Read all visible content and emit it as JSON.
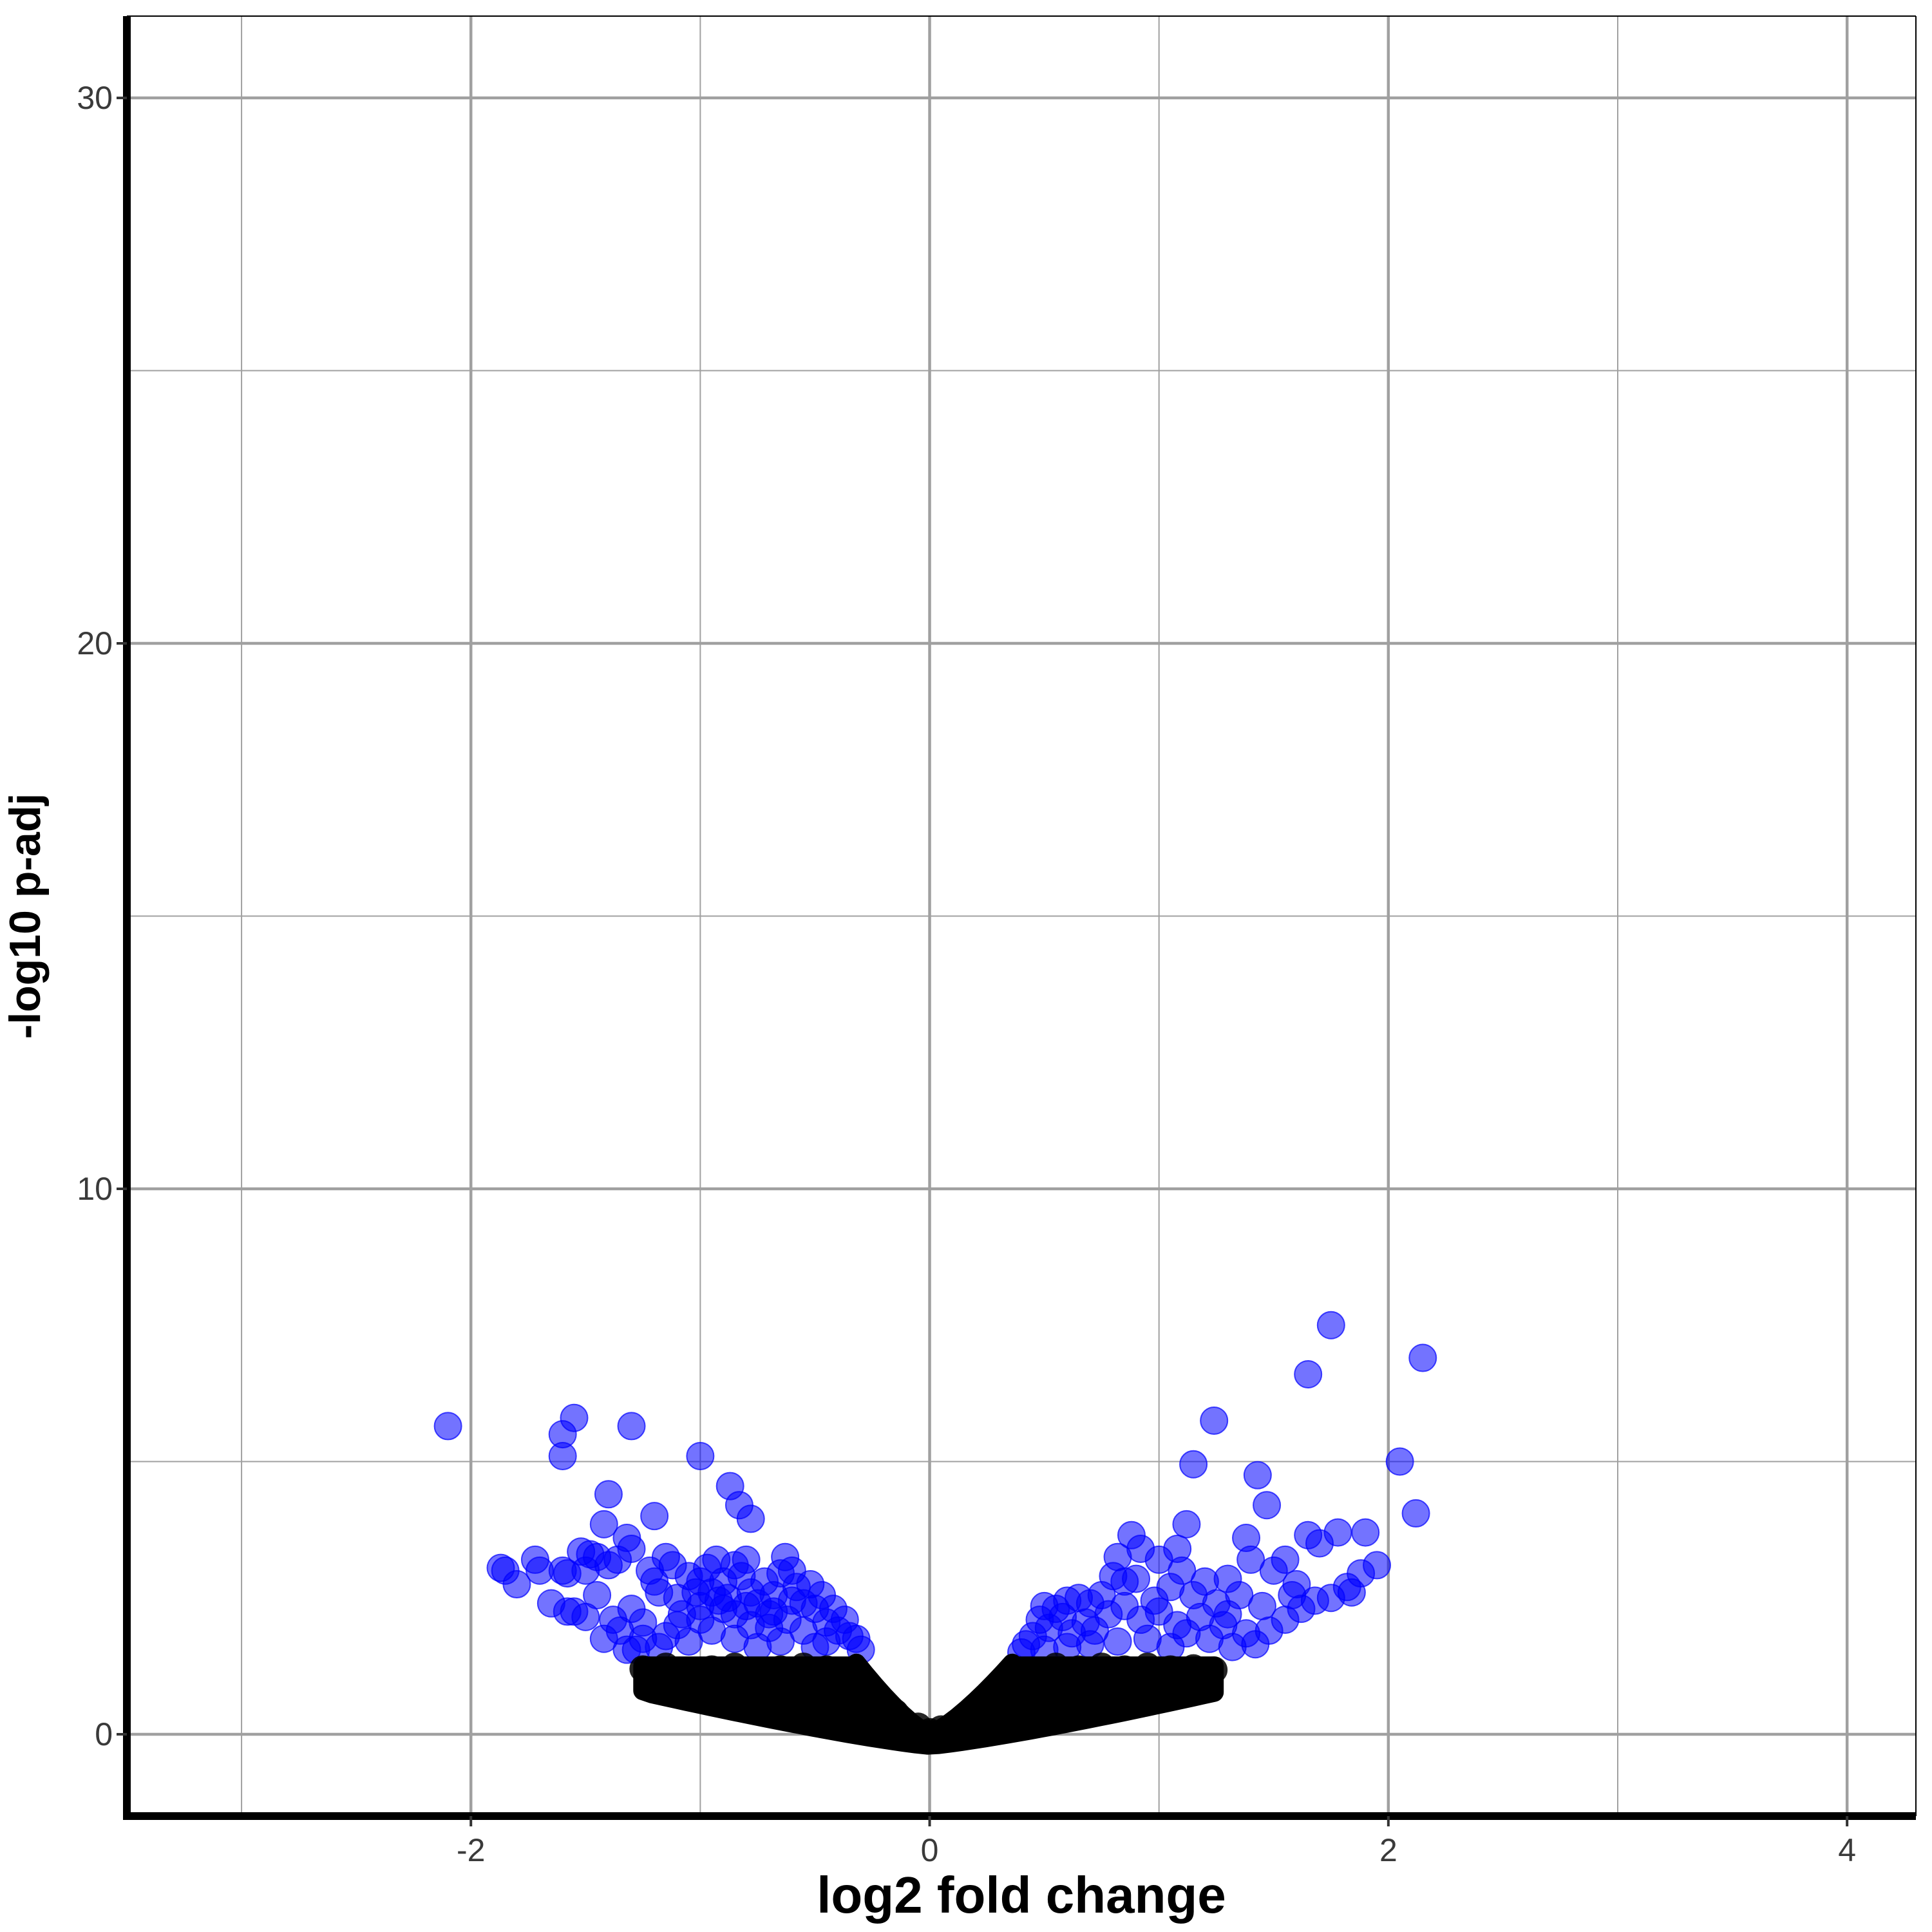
{
  "chart_data": {
    "type": "scatter",
    "title": "",
    "xlabel": "log2 fold change",
    "ylabel": "-log10 p-adj",
    "xlim": [
      -3.5,
      4.3
    ],
    "ylim": [
      -1.5,
      31.5
    ],
    "x_ticks": [
      -2,
      0,
      2,
      4
    ],
    "x_tick_labels": [
      "-2",
      "0",
      "2",
      "4"
    ],
    "y_ticks": [
      0,
      10,
      20,
      30
    ],
    "y_tick_labels": [
      "0",
      "10",
      "20",
      "30"
    ],
    "x_minor_gridlines": [
      -3,
      -1,
      1,
      3
    ],
    "y_minor_gridlines": [
      5,
      15,
      25
    ],
    "grid": true,
    "legend": "none",
    "colors": {
      "significant": "#0000ff",
      "not_significant": "#000000",
      "grid": "#a0a0a0",
      "axis": "#000000"
    },
    "significance_threshold_neglog10_padj": 1.3,
    "series": [
      {
        "role": "significant",
        "color": "#0000ff",
        "points": [
          [
            -2.1,
            5.65
          ],
          [
            -1.55,
            5.8
          ],
          [
            -1.6,
            5.5
          ],
          [
            -1.6,
            5.1
          ],
          [
            -1.3,
            5.65
          ],
          [
            -1.0,
            5.1
          ],
          [
            -0.87,
            4.55
          ],
          [
            -0.83,
            4.2
          ],
          [
            -0.78,
            3.95
          ],
          [
            -1.4,
            4.4
          ],
          [
            -1.2,
            4.0
          ],
          [
            -1.42,
            3.85
          ],
          [
            -1.32,
            3.6
          ],
          [
            -1.3,
            3.4
          ],
          [
            -1.52,
            3.35
          ],
          [
            -1.48,
            3.3
          ],
          [
            -1.36,
            3.2
          ],
          [
            -1.72,
            3.2
          ],
          [
            -1.85,
            3.0
          ],
          [
            -1.87,
            3.05
          ],
          [
            -1.8,
            2.75
          ],
          [
            -1.7,
            3.0
          ],
          [
            -1.6,
            3.0
          ],
          [
            -1.58,
            2.95
          ],
          [
            -1.5,
            3.0
          ],
          [
            -1.45,
            3.25
          ],
          [
            -1.4,
            3.1
          ],
          [
            -1.65,
            2.4
          ],
          [
            -1.58,
            2.25
          ],
          [
            -1.5,
            2.15
          ],
          [
            -1.55,
            2.25
          ],
          [
            -1.45,
            2.55
          ],
          [
            -1.42,
            1.75
          ],
          [
            -1.38,
            2.1
          ],
          [
            -1.35,
            1.9
          ],
          [
            -1.32,
            1.55
          ],
          [
            -1.3,
            2.3
          ],
          [
            -1.25,
            2.05
          ],
          [
            -1.22,
            3.0
          ],
          [
            -1.18,
            2.6
          ],
          [
            -1.15,
            3.25
          ],
          [
            -1.12,
            3.1
          ],
          [
            -1.1,
            2.5
          ],
          [
            -1.08,
            2.2
          ],
          [
            -1.05,
            2.9
          ],
          [
            -1.02,
            2.6
          ],
          [
            -1.0,
            2.35
          ],
          [
            -0.97,
            3.05
          ],
          [
            -0.93,
            3.2
          ],
          [
            -0.9,
            2.8
          ],
          [
            -0.88,
            2.5
          ],
          [
            -0.85,
            3.1
          ],
          [
            -0.82,
            2.9
          ],
          [
            -0.8,
            3.2
          ],
          [
            -0.78,
            2.6
          ],
          [
            -0.75,
            2.4
          ],
          [
            -0.72,
            2.8
          ],
          [
            -0.7,
            2.2
          ],
          [
            -0.68,
            2.55
          ],
          [
            -0.65,
            2.95
          ],
          [
            -0.63,
            3.25
          ],
          [
            -0.6,
            3.0
          ],
          [
            -0.58,
            2.7
          ],
          [
            -0.55,
            2.4
          ],
          [
            -0.52,
            2.75
          ],
          [
            -0.5,
            2.3
          ],
          [
            -0.47,
            2.55
          ],
          [
            -0.45,
            2.05
          ],
          [
            -0.42,
            2.3
          ],
          [
            -0.4,
            1.9
          ],
          [
            -0.37,
            2.1
          ],
          [
            -0.35,
            1.8
          ],
          [
            -0.32,
            1.75
          ],
          [
            -0.3,
            1.55
          ],
          [
            -1.2,
            2.8
          ],
          [
            -1.0,
            2.8
          ],
          [
            -0.95,
            2.6
          ],
          [
            -0.9,
            2.3
          ],
          [
            -0.85,
            2.2
          ],
          [
            -0.78,
            2.0
          ],
          [
            -0.7,
            1.95
          ],
          [
            -0.62,
            2.1
          ],
          [
            -0.55,
            1.9
          ],
          [
            -1.25,
            1.75
          ],
          [
            -1.15,
            1.8
          ],
          [
            -1.05,
            1.7
          ],
          [
            -0.95,
            1.9
          ],
          [
            -0.85,
            1.75
          ],
          [
            -0.75,
            1.6
          ],
          [
            -0.65,
            1.7
          ],
          [
            -0.5,
            1.6
          ],
          [
            -1.1,
            2.0
          ],
          [
            -1.0,
            2.1
          ],
          [
            -0.92,
            2.45
          ],
          [
            -0.8,
            2.35
          ],
          [
            -0.68,
            2.25
          ],
          [
            -0.6,
            2.45
          ],
          [
            -0.45,
            1.7
          ],
          [
            -1.28,
            1.55
          ],
          [
            -1.18,
            1.6
          ],
          [
            1.75,
            7.5
          ],
          [
            2.15,
            6.9
          ],
          [
            1.65,
            6.6
          ],
          [
            1.24,
            5.75
          ],
          [
            2.05,
            5.0
          ],
          [
            1.15,
            4.95
          ],
          [
            1.43,
            4.75
          ],
          [
            1.47,
            4.2
          ],
          [
            2.12,
            4.05
          ],
          [
            1.12,
            3.85
          ],
          [
            0.88,
            3.65
          ],
          [
            1.38,
            3.6
          ],
          [
            1.65,
            3.65
          ],
          [
            1.78,
            3.7
          ],
          [
            1.9,
            3.7
          ],
          [
            0.92,
            3.4
          ],
          [
            1.08,
            3.4
          ],
          [
            1.0,
            3.2
          ],
          [
            1.4,
            3.2
          ],
          [
            1.55,
            3.2
          ],
          [
            1.7,
            3.5
          ],
          [
            1.95,
            3.1
          ],
          [
            0.82,
            3.25
          ],
          [
            0.85,
            2.8
          ],
          [
            0.8,
            2.9
          ],
          [
            0.9,
            2.85
          ],
          [
            1.1,
            3.0
          ],
          [
            1.2,
            2.8
          ],
          [
            1.3,
            2.85
          ],
          [
            1.5,
            3.0
          ],
          [
            1.88,
            2.95
          ],
          [
            1.6,
            2.75
          ],
          [
            1.68,
            2.45
          ],
          [
            1.75,
            2.5
          ],
          [
            1.82,
            2.7
          ],
          [
            1.84,
            2.6
          ],
          [
            1.62,
            2.3
          ],
          [
            1.55,
            2.1
          ],
          [
            1.45,
            2.35
          ],
          [
            1.35,
            2.55
          ],
          [
            1.25,
            2.4
          ],
          [
            1.15,
            2.55
          ],
          [
            1.05,
            2.7
          ],
          [
            0.98,
            2.45
          ],
          [
            0.75,
            2.55
          ],
          [
            0.7,
            2.4
          ],
          [
            0.65,
            2.5
          ],
          [
            0.6,
            2.45
          ],
          [
            0.55,
            2.3
          ],
          [
            0.5,
            2.35
          ],
          [
            0.48,
            2.1
          ],
          [
            0.45,
            1.8
          ],
          [
            0.42,
            1.65
          ],
          [
            0.4,
            1.5
          ],
          [
            0.52,
            1.95
          ],
          [
            0.58,
            2.15
          ],
          [
            0.62,
            1.85
          ],
          [
            0.68,
            2.05
          ],
          [
            0.72,
            1.9
          ],
          [
            0.78,
            2.2
          ],
          [
            0.85,
            2.35
          ],
          [
            0.92,
            2.1
          ],
          [
            1.0,
            2.25
          ],
          [
            1.08,
            2.0
          ],
          [
            1.18,
            2.15
          ],
          [
            1.28,
            2.0
          ],
          [
            1.38,
            1.85
          ],
          [
            1.48,
            1.9
          ],
          [
            1.32,
            1.6
          ],
          [
            1.42,
            1.65
          ],
          [
            1.22,
            1.75
          ],
          [
            1.12,
            1.85
          ],
          [
            0.95,
            1.75
          ],
          [
            0.82,
            1.7
          ],
          [
            0.7,
            1.65
          ],
          [
            0.6,
            1.6
          ],
          [
            0.5,
            1.55
          ],
          [
            1.58,
            2.55
          ],
          [
            1.3,
            2.2
          ],
          [
            1.05,
            1.6
          ]
        ]
      },
      {
        "role": "not significant",
        "color": "#000000",
        "points": [
          [
            -1.25,
            1.2
          ],
          [
            -1.15,
            1.25
          ],
          [
            -1.05,
            1.15
          ],
          [
            -0.95,
            1.2
          ],
          [
            -0.85,
            1.25
          ],
          [
            -0.75,
            1.15
          ],
          [
            -0.65,
            1.2
          ],
          [
            -0.55,
            1.25
          ],
          [
            -0.45,
            1.2
          ],
          [
            -0.35,
            1.0
          ],
          [
            -0.25,
            0.7
          ],
          [
            -0.15,
            0.4
          ],
          [
            -0.05,
            0.15
          ],
          [
            0.0,
            0.05
          ],
          [
            0.05,
            0.1
          ],
          [
            0.15,
            0.3
          ],
          [
            0.25,
            0.55
          ],
          [
            0.35,
            0.85
          ],
          [
            0.45,
            1.1
          ],
          [
            0.55,
            1.25
          ],
          [
            0.65,
            1.2
          ],
          [
            0.75,
            1.25
          ],
          [
            0.85,
            1.2
          ],
          [
            0.95,
            1.25
          ],
          [
            1.05,
            1.2
          ],
          [
            1.15,
            1.22
          ],
          [
            1.24,
            1.18
          ],
          [
            -1.2,
            1.0
          ],
          [
            -1.0,
            0.9
          ],
          [
            -0.8,
            0.8
          ],
          [
            -0.6,
            0.7
          ],
          [
            -0.4,
            0.5
          ],
          [
            -0.2,
            0.3
          ],
          [
            0.2,
            0.25
          ],
          [
            0.4,
            0.5
          ],
          [
            0.6,
            0.75
          ],
          [
            0.8,
            0.9
          ],
          [
            1.0,
            1.0
          ],
          [
            1.2,
            1.05
          ],
          [
            -0.9,
            0.6
          ],
          [
            -0.6,
            0.35
          ],
          [
            -0.3,
            0.15
          ],
          [
            0.3,
            0.2
          ],
          [
            0.6,
            0.45
          ],
          [
            0.9,
            0.7
          ],
          [
            -1.1,
            0.95
          ],
          [
            -0.7,
            0.55
          ],
          [
            0.7,
            0.6
          ],
          [
            1.1,
            0.9
          ],
          [
            -0.1,
            0.05
          ]
        ]
      }
    ]
  }
}
